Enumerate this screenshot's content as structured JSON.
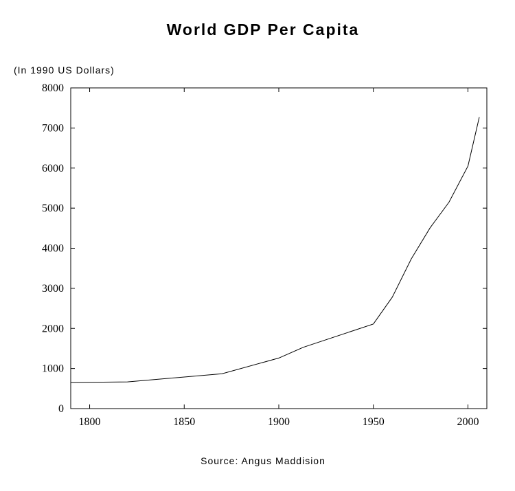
{
  "chart_data": {
    "type": "line",
    "title": "World GDP Per Capita",
    "ylabel": "(In 1990 US Dollars)",
    "source": "Source: Angus Maddision",
    "xlim": [
      1790,
      2010
    ],
    "ylim": [
      0,
      8000
    ],
    "xticks": [
      "1800",
      "1850",
      "1900",
      "1950",
      "2000"
    ],
    "yticks": [
      "0",
      "1000",
      "2000",
      "3000",
      "4000",
      "5000",
      "6000",
      "7000",
      "8000"
    ],
    "grid": false,
    "series": [
      {
        "x": [
          1790,
          1820,
          1870,
          1900,
          1913,
          1950,
          1960,
          1970,
          1980,
          1990,
          2000,
          2006
        ],
        "y": [
          650,
          667,
          870,
          1260,
          1530,
          2110,
          2780,
          3730,
          4510,
          5150,
          6050,
          7270
        ]
      }
    ]
  }
}
